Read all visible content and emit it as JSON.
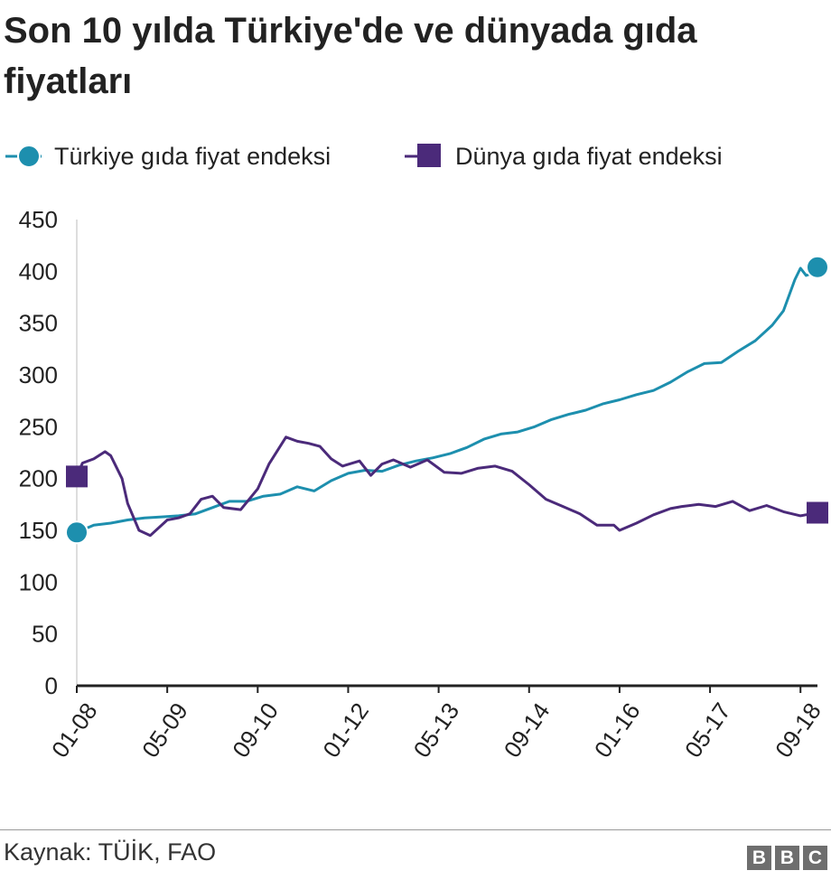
{
  "title": "Son 10 yılda Türkiye'de ve dünyada gıda fiyatları",
  "source": "Kaynak: TÜİK, FAO",
  "logo": [
    "B",
    "B",
    "C"
  ],
  "legend": [
    {
      "label": "Türkiye gıda fiyat endeksi",
      "marker": "circle"
    },
    {
      "label": "Dünya gıda fiyat endeksi",
      "marker": "square"
    }
  ],
  "colors": {
    "turkiye": "#1d8fae",
    "dunya": "#4b2a7a",
    "axis": "#222222",
    "grid": "#dddddd"
  },
  "chart_data": {
    "type": "line",
    "x_start": "2008-01",
    "x_end": "2018-12",
    "x_ticks": [
      "01-08",
      "05-09",
      "09-10",
      "01-12",
      "05-13",
      "09-14",
      "01-16",
      "05-17",
      "09-18"
    ],
    "ylim": [
      0,
      450
    ],
    "y_ticks": [
      "0",
      "50",
      "100",
      "150",
      "200",
      "250",
      "300",
      "350",
      "400",
      "450"
    ],
    "grid": false,
    "legend_position": "top",
    "series": [
      {
        "name": "Türkiye gıda fiyat endeksi",
        "points": [
          [
            "2008-01",
            148
          ],
          [
            "2008-04",
            155
          ],
          [
            "2008-07",
            157
          ],
          [
            "2008-10",
            160
          ],
          [
            "2009-01",
            162
          ],
          [
            "2009-04",
            163
          ],
          [
            "2009-07",
            164
          ],
          [
            "2009-10",
            166
          ],
          [
            "2010-01",
            172
          ],
          [
            "2010-04",
            178
          ],
          [
            "2010-07",
            178
          ],
          [
            "2010-10",
            183
          ],
          [
            "2011-01",
            185
          ],
          [
            "2011-04",
            192
          ],
          [
            "2011-07",
            188
          ],
          [
            "2011-10",
            198
          ],
          [
            "2012-01",
            205
          ],
          [
            "2012-04",
            208
          ],
          [
            "2012-07",
            207
          ],
          [
            "2012-10",
            213
          ],
          [
            "2013-01",
            217
          ],
          [
            "2013-04",
            220
          ],
          [
            "2013-07",
            224
          ],
          [
            "2013-10",
            230
          ],
          [
            "2014-01",
            238
          ],
          [
            "2014-04",
            243
          ],
          [
            "2014-07",
            245
          ],
          [
            "2014-10",
            250
          ],
          [
            "2015-01",
            257
          ],
          [
            "2015-04",
            262
          ],
          [
            "2015-07",
            266
          ],
          [
            "2015-10",
            272
          ],
          [
            "2016-01",
            276
          ],
          [
            "2016-04",
            281
          ],
          [
            "2016-07",
            285
          ],
          [
            "2016-10",
            293
          ],
          [
            "2017-01",
            303
          ],
          [
            "2017-04",
            311
          ],
          [
            "2017-07",
            312
          ],
          [
            "2017-10",
            323
          ],
          [
            "2018-01",
            333
          ],
          [
            "2018-04",
            348
          ],
          [
            "2018-06",
            362
          ],
          [
            "2018-08",
            392
          ],
          [
            "2018-09",
            403
          ],
          [
            "2018-10",
            396
          ],
          [
            "2018-11",
            398
          ],
          [
            "2018-12",
            404
          ]
        ]
      },
      {
        "name": "Dünya gıda fiyat endeksi",
        "points": [
          [
            "2008-01",
            202
          ],
          [
            "2008-02",
            215
          ],
          [
            "2008-04",
            219
          ],
          [
            "2008-06",
            226
          ],
          [
            "2008-07",
            222
          ],
          [
            "2008-09",
            200
          ],
          [
            "2008-10",
            176
          ],
          [
            "2008-12",
            150
          ],
          [
            "2009-02",
            145
          ],
          [
            "2009-05",
            160
          ],
          [
            "2009-07",
            162
          ],
          [
            "2009-09",
            166
          ],
          [
            "2009-11",
            180
          ],
          [
            "2010-01",
            183
          ],
          [
            "2010-03",
            172
          ],
          [
            "2010-06",
            170
          ],
          [
            "2010-09",
            190
          ],
          [
            "2010-11",
            214
          ],
          [
            "2011-02",
            240
          ],
          [
            "2011-04",
            236
          ],
          [
            "2011-06",
            234
          ],
          [
            "2011-08",
            231
          ],
          [
            "2011-10",
            219
          ],
          [
            "2011-12",
            212
          ],
          [
            "2012-03",
            217
          ],
          [
            "2012-05",
            203
          ],
          [
            "2012-07",
            214
          ],
          [
            "2012-09",
            218
          ],
          [
            "2012-12",
            211
          ],
          [
            "2013-03",
            218
          ],
          [
            "2013-06",
            206
          ],
          [
            "2013-09",
            205
          ],
          [
            "2013-12",
            210
          ],
          [
            "2014-03",
            212
          ],
          [
            "2014-06",
            207
          ],
          [
            "2014-09",
            194
          ],
          [
            "2014-12",
            180
          ],
          [
            "2015-03",
            173
          ],
          [
            "2015-06",
            166
          ],
          [
            "2015-09",
            155
          ],
          [
            "2015-12",
            155
          ],
          [
            "2016-01",
            150
          ],
          [
            "2016-04",
            157
          ],
          [
            "2016-07",
            165
          ],
          [
            "2016-10",
            171
          ],
          [
            "2016-12",
            173
          ],
          [
            "2017-03",
            175
          ],
          [
            "2017-06",
            173
          ],
          [
            "2017-09",
            178
          ],
          [
            "2017-12",
            169
          ],
          [
            "2018-03",
            174
          ],
          [
            "2018-06",
            168
          ],
          [
            "2018-09",
            164
          ],
          [
            "2018-12",
            167
          ]
        ]
      }
    ]
  }
}
